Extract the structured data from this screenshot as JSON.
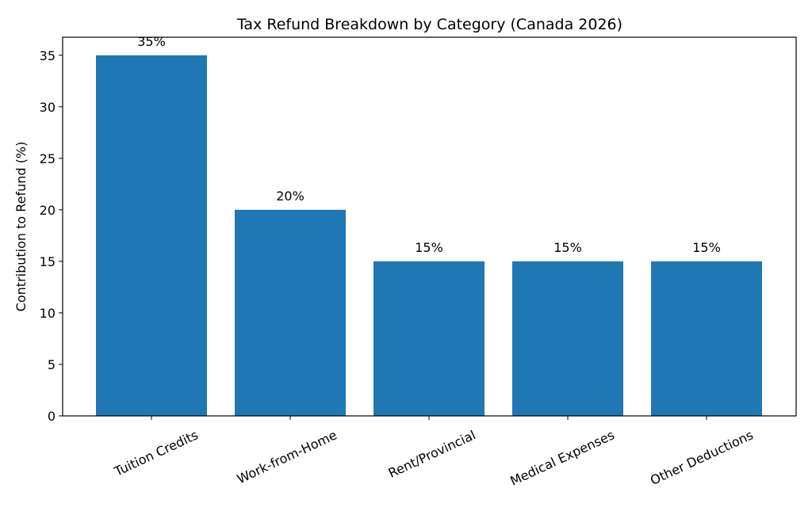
{
  "chart_data": {
    "type": "bar",
    "title": "Tax Refund Breakdown by Category (Canada 2026)",
    "y_label": "Contribution to Refund (%)",
    "categories": [
      "Tuition Credits",
      "Work-from-Home",
      "Rent/Provincial",
      "Medical Expenses",
      "Other Deductions"
    ],
    "values": [
      35,
      20,
      15,
      15,
      15
    ],
    "value_labels": [
      "35%",
      "20%",
      "15%",
      "15%",
      "15%"
    ],
    "color": "#1f77b4",
    "ylim": [
      0,
      36.75
    ],
    "yticks": [
      0,
      5,
      10,
      15,
      20,
      25,
      30,
      35
    ],
    "grid": false
  }
}
